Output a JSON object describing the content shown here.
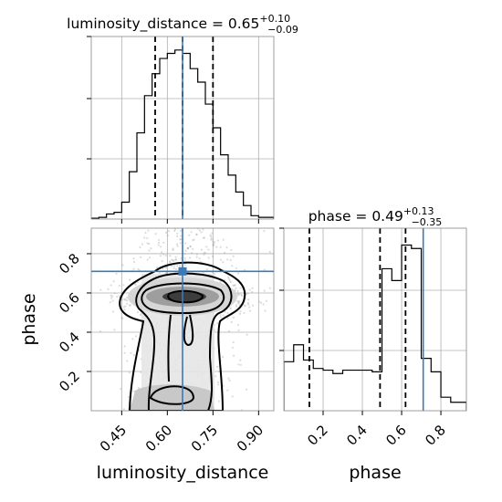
{
  "chart_data": {
    "type": "corner",
    "parameters": [
      "luminosity_distance",
      "phase"
    ],
    "truths": {
      "luminosity_distance": 0.65,
      "phase": 0.71
    },
    "truth_color": "#3a7ab8",
    "panels": [
      {
        "id": "luminosity_distance_hist",
        "type": "step-histogram",
        "title": "luminosity_distance = 0.65",
        "title_main": "luminosity_distance = 0.65",
        "title_sup": "+0.10",
        "title_sub": "−0.09",
        "x_range": [
          0.35,
          0.95
        ],
        "y_range": [
          0,
          1
        ],
        "bin_edges": [
          0.35,
          0.375,
          0.4,
          0.425,
          0.45,
          0.475,
          0.5,
          0.525,
          0.55,
          0.575,
          0.6,
          0.625,
          0.65,
          0.675,
          0.7,
          0.725,
          0.75,
          0.775,
          0.8,
          0.825,
          0.85,
          0.875,
          0.9,
          0.925,
          0.95
        ],
        "counts": [
          0.005,
          0.01,
          0.03,
          0.04,
          0.1,
          0.28,
          0.51,
          0.73,
          0.86,
          0.95,
          0.98,
          1.0,
          0.98,
          0.89,
          0.81,
          0.68,
          0.54,
          0.38,
          0.26,
          0.16,
          0.08,
          0.02,
          0.01,
          0.01
        ],
        "quantiles": [
          0.56,
          0.65,
          0.75
        ]
      },
      {
        "id": "phase_hist",
        "type": "step-histogram",
        "title": "phase = 0.49",
        "title_main": "phase = 0.49",
        "title_sup": "+0.13",
        "title_sub": "−0.35",
        "x_range": [
          0.0,
          0.93
        ],
        "y_range": [
          0,
          1
        ],
        "xticks": [
          0.2,
          0.4,
          0.6,
          0.8
        ],
        "xlabel": "phase",
        "bin_edges": [
          0.0,
          0.05,
          0.1,
          0.15,
          0.2,
          0.25,
          0.3,
          0.35,
          0.4,
          0.45,
          0.5,
          0.55,
          0.6,
          0.65,
          0.7,
          0.75,
          0.8,
          0.85,
          0.9,
          0.93
        ],
        "counts": [
          0.29,
          0.39,
          0.3,
          0.25,
          0.24,
          0.22,
          0.24,
          0.24,
          0.24,
          0.23,
          0.84,
          0.77,
          0.98,
          0.96,
          0.31,
          0.23,
          0.08,
          0.05,
          0.05
        ],
        "quantiles": [
          0.13,
          0.49,
          0.62
        ]
      },
      {
        "id": "joint",
        "type": "2d-density",
        "x_param": "luminosity_distance",
        "y_param": "phase",
        "x_range": [
          0.35,
          0.95
        ],
        "y_range": [
          0.0,
          0.93
        ],
        "xticks": [
          0.45,
          0.6,
          0.75,
          0.9
        ],
        "yticks": [
          0.2,
          0.4,
          0.6,
          0.8
        ],
        "xlabel": "luminosity_distance",
        "ylabel": "phase",
        "truth_point": [
          0.65,
          0.71
        ]
      }
    ]
  }
}
